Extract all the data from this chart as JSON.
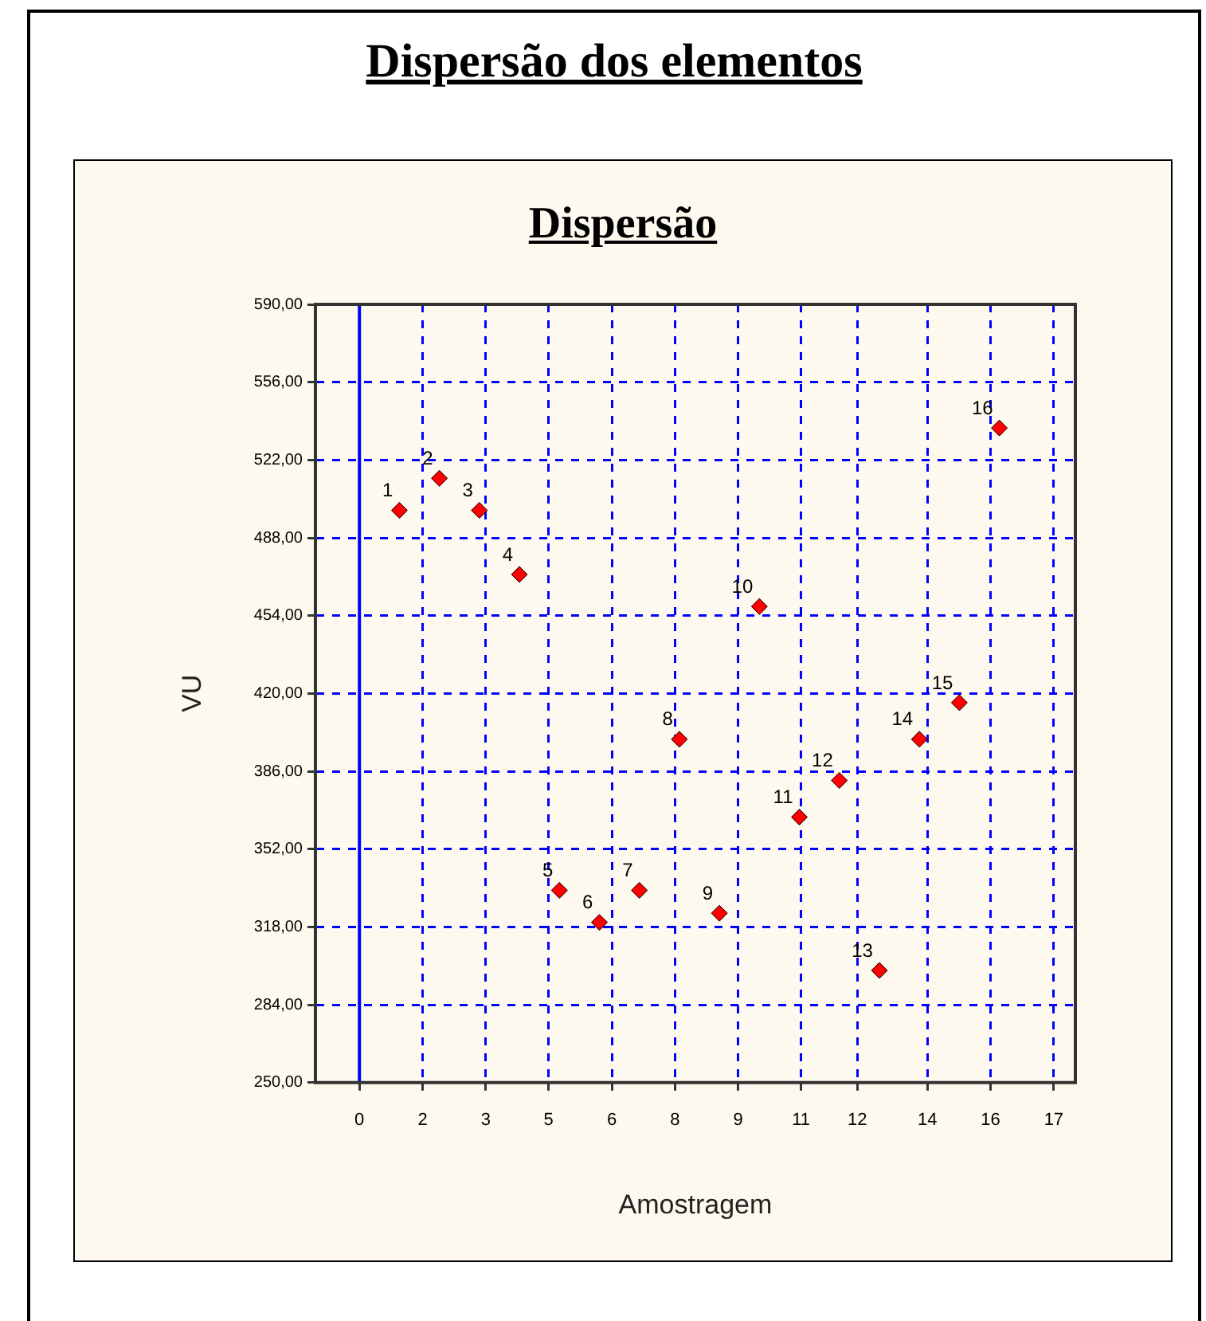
{
  "chart_data": {
    "type": "scatter",
    "title": "Dispersão dos elementos",
    "subtitle": "Dispersão",
    "xlabel": "Amostragem",
    "ylabel": "VU",
    "x": [
      1,
      2,
      3,
      4,
      5,
      6,
      7,
      8,
      9,
      10,
      11,
      12,
      13,
      14,
      15,
      16
    ],
    "series": [
      {
        "color": "#ff0000",
        "values": [
          500,
          514,
          500,
          472,
          334,
          320,
          334,
          400,
          324,
          458,
          366,
          382,
          299,
          400,
          416,
          536
        ]
      }
    ],
    "value_labels": [
      "1",
      "2",
      "3",
      "4",
      "5",
      "6",
      "7",
      "8",
      "9",
      "10",
      "11",
      "12",
      "13",
      "14",
      "15",
      "16"
    ],
    "xlim": [
      -1.1,
      17.9
    ],
    "xticks": [
      {
        "value": 0,
        "label": "0"
      },
      {
        "value": 1.58,
        "label": "2"
      },
      {
        "value": 3.16,
        "label": "3"
      },
      {
        "value": 4.73,
        "label": "5"
      },
      {
        "value": 6.31,
        "label": "6"
      },
      {
        "value": 7.89,
        "label": "8"
      },
      {
        "value": 9.47,
        "label": "9"
      },
      {
        "value": 11.04,
        "label": "11"
      },
      {
        "value": 12.45,
        "label": "12"
      },
      {
        "value": 14.2,
        "label": "14"
      },
      {
        "value": 15.78,
        "label": "16"
      },
      {
        "value": 17.36,
        "label": "17"
      }
    ],
    "ylim": [
      250,
      590
    ],
    "yticks": [
      {
        "value": 250,
        "label": "250,00"
      },
      {
        "value": 284,
        "label": "284,00"
      },
      {
        "value": 318,
        "label": "318,00"
      },
      {
        "value": 352,
        "label": "352,00"
      },
      {
        "value": 386,
        "label": "386,00"
      },
      {
        "value": 420,
        "label": "420,00"
      },
      {
        "value": 454,
        "label": "454,00"
      },
      {
        "value": 488,
        "label": "488,00"
      },
      {
        "value": 522,
        "label": "522,00"
      },
      {
        "value": 556,
        "label": "556,00"
      },
      {
        "value": 590,
        "label": "590,00"
      }
    ],
    "ref_lines": [
      {
        "axis": "x",
        "value": 0,
        "color": "#0000ff",
        "line_style": "solid"
      }
    ],
    "grid": true,
    "legend": false,
    "marker": "diamond"
  }
}
